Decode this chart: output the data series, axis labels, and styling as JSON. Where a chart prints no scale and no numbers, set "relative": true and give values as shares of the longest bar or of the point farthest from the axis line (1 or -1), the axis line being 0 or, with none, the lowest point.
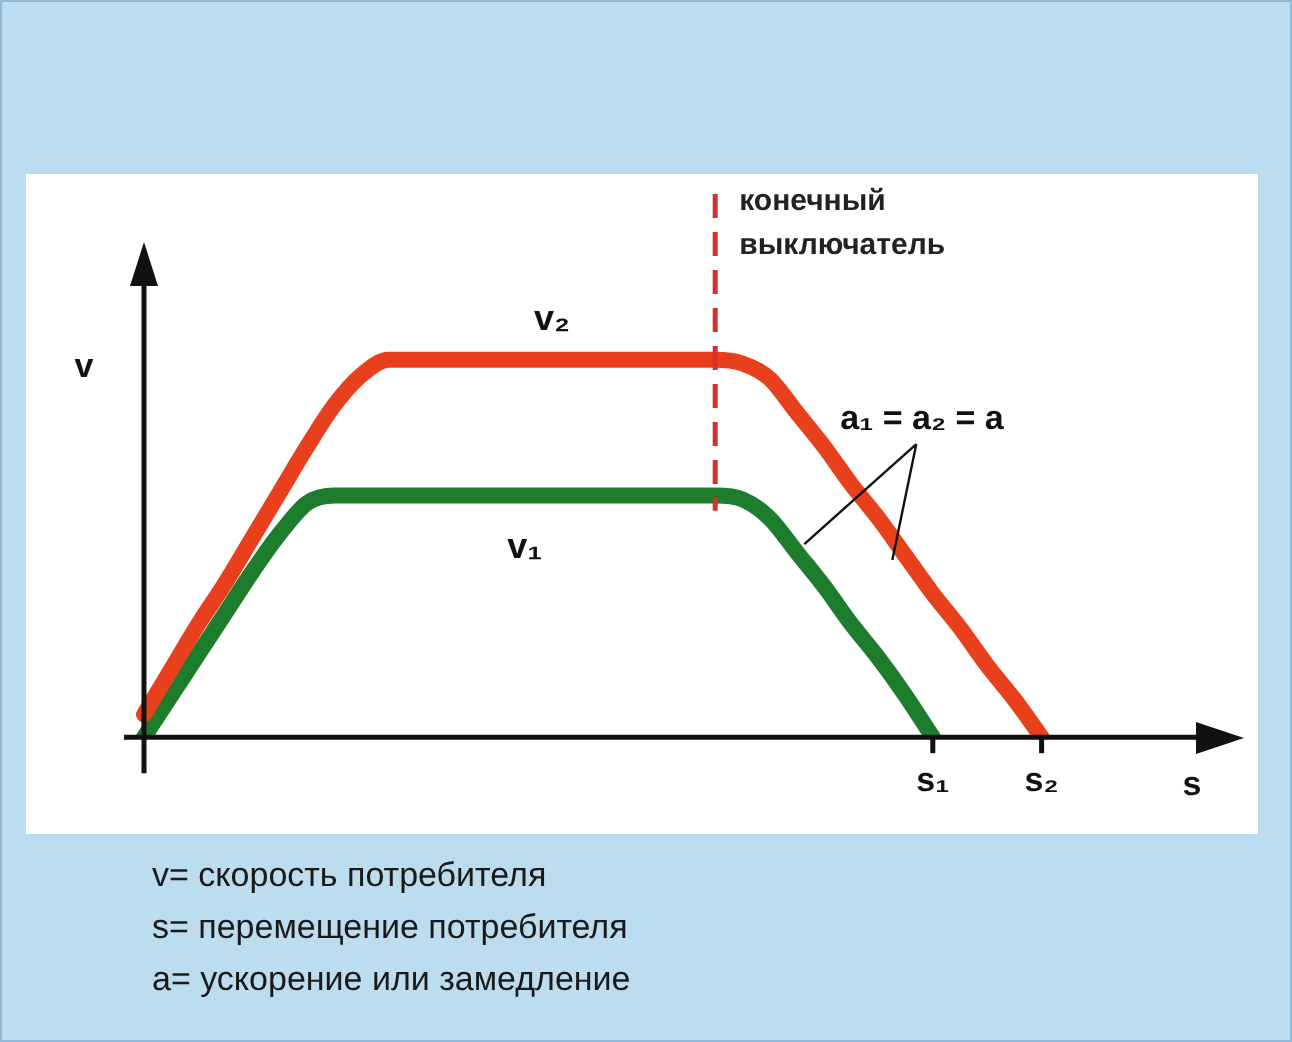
{
  "chart_data": {
    "type": "line",
    "relative": true,
    "xlabel": "s",
    "ylabel": "v",
    "categories": [
      null,
      null,
      null,
      null,
      null,
      null,
      null,
      null,
      null,
      null,
      null,
      null,
      null,
      null,
      null,
      null,
      null,
      null,
      null,
      null,
      null,
      null,
      null,
      null,
      null,
      null,
      null,
      null,
      null,
      "s₁",
      null,
      null,
      null,
      "s₂",
      null,
      null,
      null,
      null,
      null,
      null,
      null
    ],
    "tick_labels": "x",
    "legend": false,
    "grid": false,
    "marker": "none",
    "line_style": "solid",
    "series": [
      {
        "name": "v₂",
        "color": "#e8401c",
        "values": [
          0.06,
          0.18,
          0.3,
          0.41,
          0.53,
          0.65,
          0.77,
          0.88,
          0.96,
          1,
          1,
          1,
          1,
          1,
          1,
          1,
          1,
          1,
          1,
          1,
          1,
          1,
          0.99,
          0.95,
          0.86,
          0.77,
          0.67,
          0.58,
          0.48,
          0.38,
          0.29,
          0.19,
          0.1,
          0,
          null,
          null,
          null,
          null,
          null,
          null,
          null
        ]
      },
      {
        "name": "v₁",
        "color": "#1e7d2c",
        "values": [
          0,
          0.11,
          0.22,
          0.33,
          0.44,
          0.54,
          0.62,
          0.64,
          0.64,
          0.64,
          0.64,
          0.64,
          0.64,
          0.64,
          0.64,
          0.64,
          0.64,
          0.64,
          0.64,
          0.64,
          0.64,
          0.64,
          0.63,
          0.58,
          0.49,
          0.4,
          0.3,
          0.21,
          0.11,
          0,
          null,
          null,
          null,
          null,
          null,
          null,
          null,
          null,
          null,
          null,
          null
        ]
      }
    ],
    "annotations": [
      "a₁ = a₂ = a",
      "конечный выключатель",
      "v= скорость потребителя",
      "s= перемещение потребителя",
      "a= ускорение или замедление"
    ]
  }
}
